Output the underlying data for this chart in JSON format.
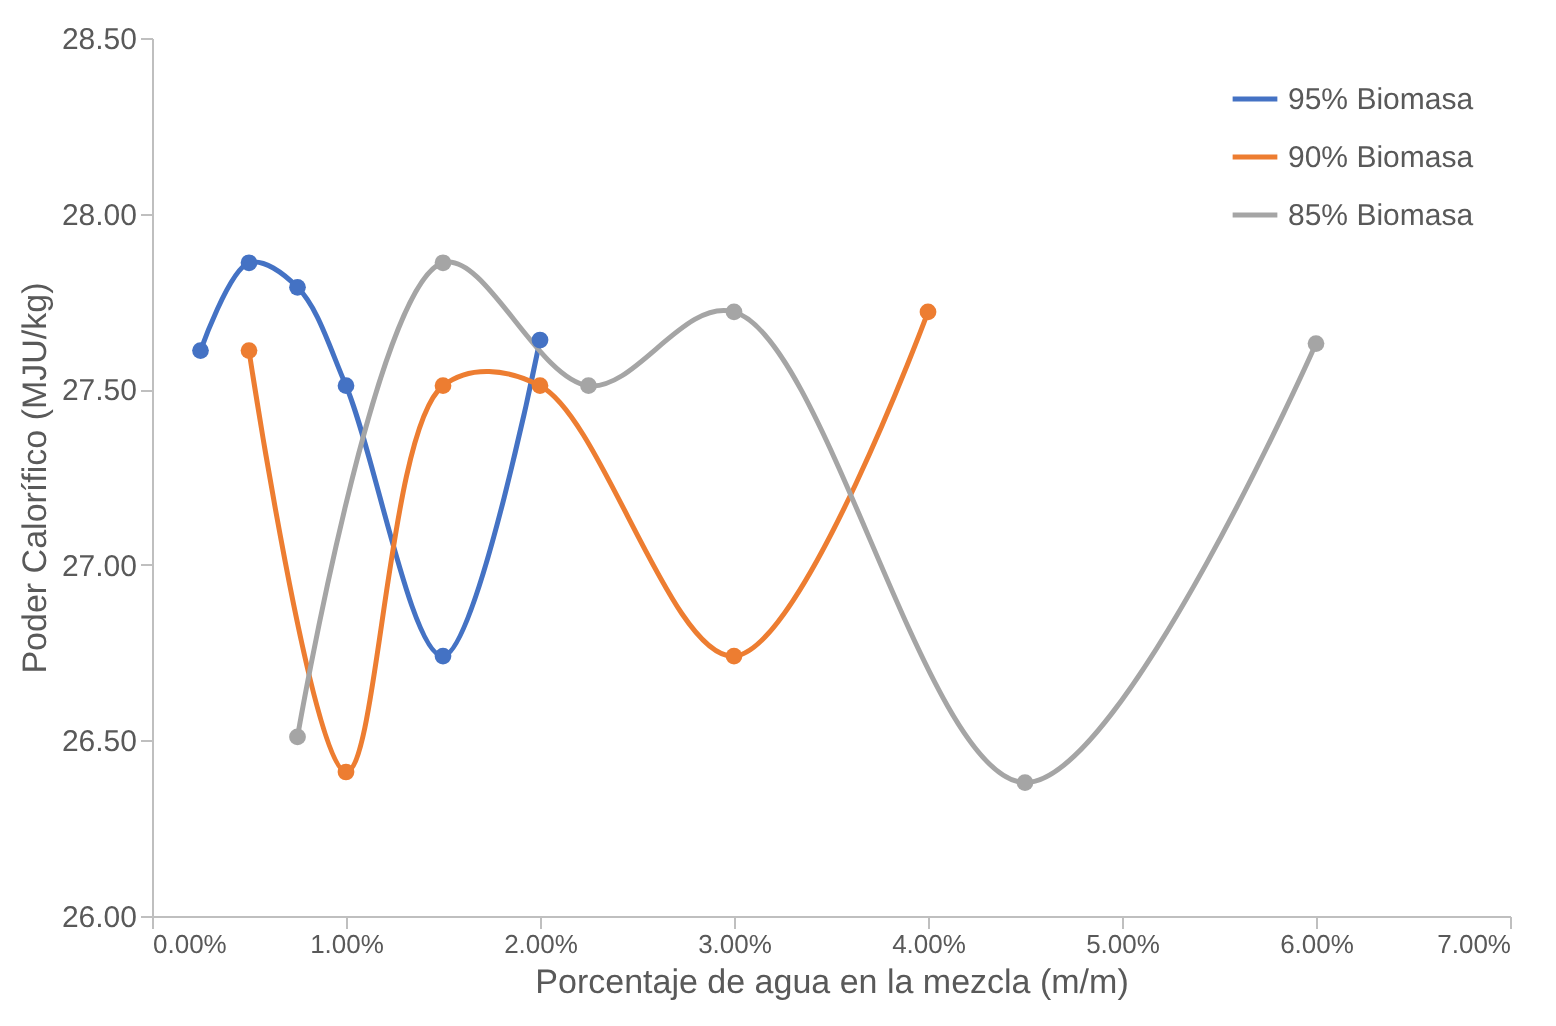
{
  "chart_data": {
    "type": "line",
    "xlabel": "Porcentaje de agua en la mezcla (m/m)",
    "ylabel": "Poder Calorífico (MJU/kg)",
    "series": [
      {
        "name": "95% Biomasa",
        "color": "#4472c4",
        "x": [
          0.25,
          0.5,
          0.75,
          1.0,
          1.5,
          2.0
        ],
        "values": [
          27.61,
          27.86,
          27.79,
          27.51,
          26.74,
          27.64
        ]
      },
      {
        "name": "90% Biomasa",
        "color": "#ed7d31",
        "x": [
          0.5,
          1.0,
          1.5,
          2.0,
          3.0,
          4.0
        ],
        "values": [
          27.61,
          26.41,
          27.51,
          27.51,
          26.74,
          27.72
        ]
      },
      {
        "name": "85% Biomasa",
        "color": "#a5a5a5",
        "x": [
          0.75,
          1.5,
          2.25,
          3.0,
          4.5,
          6.0
        ],
        "values": [
          26.51,
          27.86,
          27.51,
          27.72,
          26.38,
          27.63
        ]
      }
    ],
    "xlim": [
      0,
      7
    ],
    "ylim": [
      26,
      28.5
    ],
    "xticks": [
      {
        "value": 0,
        "label": "0.00%"
      },
      {
        "value": 1,
        "label": "1.00%"
      },
      {
        "value": 2,
        "label": "2.00%"
      },
      {
        "value": 3,
        "label": "3.00%"
      },
      {
        "value": 4,
        "label": "4.00%"
      },
      {
        "value": 5,
        "label": "5.00%"
      },
      {
        "value": 6,
        "label": "6.00%"
      },
      {
        "value": 7,
        "label": "7.00%"
      }
    ],
    "yticks": [
      {
        "value": 26,
        "label": "26.00"
      },
      {
        "value": 26.5,
        "label": "26.50"
      },
      {
        "value": 27,
        "label": "27.00"
      },
      {
        "value": 27.5,
        "label": "27.50"
      },
      {
        "value": 28,
        "label": "28.00"
      },
      {
        "value": 28.5,
        "label": "28.50"
      }
    ],
    "grid": false,
    "legend": "top right",
    "marker": "circle",
    "line_style": "solid"
  }
}
